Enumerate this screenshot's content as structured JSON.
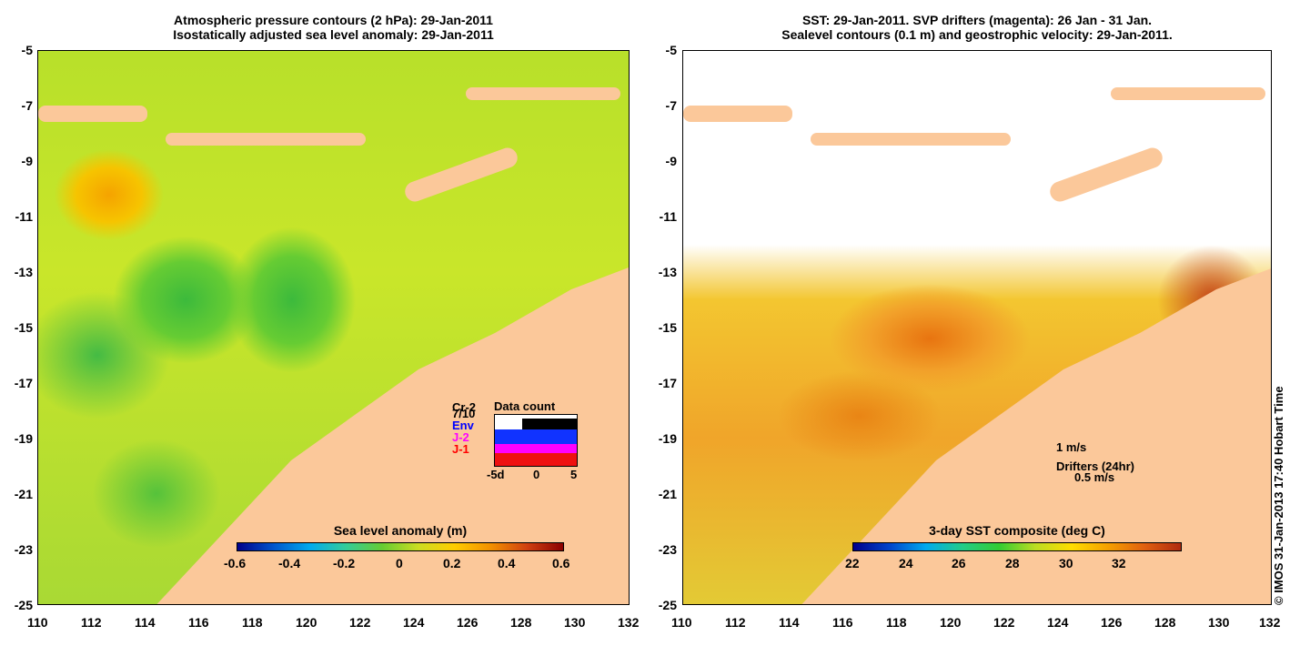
{
  "left_panel": {
    "title_line1": "Atmospheric pressure contours (2 hPa): 29-Jan-2011",
    "title_line2": "Isostatically adjusted sea level anomaly: 29-Jan-2011",
    "colorbar_title": "Sea level anomaly (m)",
    "colorbar_ticks": [
      "-0.6",
      "-0.4",
      "-0.2",
      "0",
      "0.2",
      "0.4",
      "0.6"
    ],
    "data_count": {
      "title": "Data count",
      "labels": [
        "Cr-2",
        "7/10",
        "Env",
        "J-2",
        "J-1"
      ],
      "label_colors": [
        "#000000",
        "#000000",
        "#0000ff",
        "#ff00ff",
        "#ff0000"
      ],
      "x_ticks": [
        "-5d",
        "0",
        "5"
      ]
    }
  },
  "right_panel": {
    "title_line1": "SST: 29-Jan-2011. SVP drifters (magenta): 26 Jan - 31 Jan.",
    "title_line2": "Sealevel contours (0.1 m) and geostrophic velocity: 29-Jan-2011.",
    "colorbar_title": "3-day SST composite (deg C)",
    "colorbar_ticks": [
      "22",
      "24",
      "26",
      "28",
      "30",
      "32"
    ],
    "velocity_scale": "1 m/s",
    "drifters_label": "Drifters (24hr)",
    "drifters_scale": "0.5 m/s"
  },
  "axes": {
    "y_ticks": [
      "-5",
      "-7",
      "-9",
      "-11",
      "-13",
      "-15",
      "-17",
      "-19",
      "-21",
      "-23",
      "-25"
    ],
    "x_ticks": [
      "110",
      "112",
      "114",
      "116",
      "118",
      "120",
      "122",
      "124",
      "126",
      "128",
      "130",
      "132"
    ]
  },
  "credit": "© IMOS 31-Jan-2013 17:40 Hobart Time"
}
